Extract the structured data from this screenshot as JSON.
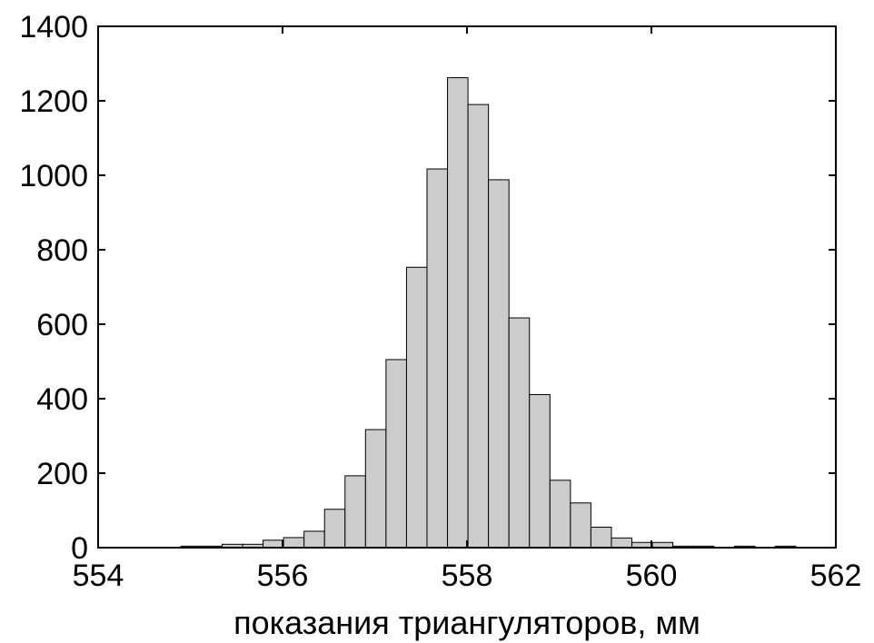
{
  "chart_data": {
    "type": "bar",
    "title": "",
    "xlabel": "показания триангуляторов, мм",
    "ylabel": "",
    "xlim": [
      554,
      562
    ],
    "ylim": [
      0,
      1400
    ],
    "xticks": [
      "554",
      "556",
      "558",
      "560",
      "562"
    ],
    "yticks": [
      "0",
      "200",
      "400",
      "600",
      "800",
      "1000",
      "1200",
      "1400"
    ],
    "grid": false,
    "bin_width": 0.2222,
    "bin_start": 554.9,
    "values": [
      4,
      4,
      9,
      9,
      20,
      27,
      44,
      103,
      193,
      317,
      505,
      753,
      1017,
      1262,
      1190,
      988,
      617,
      411,
      181,
      120,
      55,
      26,
      14,
      14,
      4,
      4,
      0,
      4,
      0,
      4
    ],
    "colors": {
      "bar_fill": "#cccccc",
      "bar_stroke": "#000000",
      "axes": "#000000"
    }
  }
}
